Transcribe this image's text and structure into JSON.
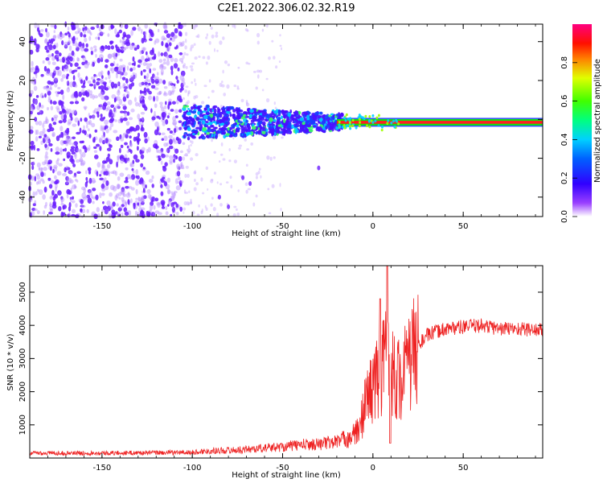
{
  "figure_title": "C2E1.2022.306.02.32.R19",
  "colors": {
    "background": "#ffffff",
    "snr_line": "#ee2222",
    "scatter_point": "#6a1cff",
    "band_core": "#ff2020",
    "band_edge": "#10e010",
    "band_outline": "#1030ff"
  },
  "chart_data": [
    {
      "type": "heatmap",
      "name": "spectrogram",
      "xlabel": "Height of straight line (km)",
      "ylabel": "Frequency (Hz)",
      "xlim": [
        -190,
        94
      ],
      "ylim": [
        -50,
        49
      ],
      "xticks": [
        -150,
        -100,
        -50,
        0,
        50
      ],
      "yticks": [
        -40,
        -20,
        0,
        20,
        40
      ],
      "colorbar": {
        "label": "Normalized spectral amplitude",
        "range": [
          0.0,
          1.0
        ],
        "ticks": [
          "0.0",
          "0.2",
          "0.4",
          "0.6",
          "0.8"
        ],
        "colormap": [
          "#ffffff",
          "#7000ff",
          "#0000ff",
          "#00c8ff",
          "#00ff60",
          "#a0ff00",
          "#ffff00",
          "#ff8000",
          "#ff0000",
          "#ff0080"
        ]
      },
      "regions": [
        {
          "x_range": [
            -190,
            -105
          ],
          "freq_range": [
            -50,
            49
          ],
          "amplitude": 0.15,
          "density": "high"
        },
        {
          "x_range": [
            -105,
            -75
          ],
          "freq_range": [
            -50,
            49
          ],
          "amplitude": 0.05,
          "density": "low"
        },
        {
          "x_range": [
            -105,
            -20
          ],
          "freq_range": [
            -10,
            8
          ],
          "amplitude": 0.35,
          "density": "band"
        },
        {
          "x_range": [
            -20,
            94
          ],
          "freq_range": [
            -4,
            1
          ],
          "amplitude": 0.9,
          "density": "line"
        }
      ],
      "line_frequency_hz": -1.5
    },
    {
      "type": "line",
      "name": "snr",
      "xlabel": "Height of straight line (km)",
      "ylabel": "SNR (10 * v/v)",
      "xlim": [
        -190,
        94
      ],
      "ylim": [
        0,
        5800
      ],
      "xticks": [
        -150,
        -100,
        -50,
        0,
        50
      ],
      "yticks": [
        1000,
        2000,
        3000,
        4000,
        5000
      ],
      "series": [
        {
          "x": [
            -190,
            -150,
            -120,
            -100,
            -90,
            -75,
            -60,
            -50,
            -40,
            -30,
            -20,
            -15,
            -10,
            -7,
            -5,
            0,
            5,
            8,
            10,
            15,
            20,
            25,
            30,
            40,
            50,
            60,
            70,
            80,
            94
          ],
          "y": [
            150,
            150,
            160,
            170,
            220,
            240,
            300,
            340,
            400,
            420,
            500,
            600,
            700,
            900,
            1600,
            2200,
            2600,
            3500,
            2700,
            2300,
            2900,
            3400,
            3700,
            3900,
            3950,
            4000,
            3900,
            3900,
            3850
          ]
        }
      ]
    }
  ]
}
